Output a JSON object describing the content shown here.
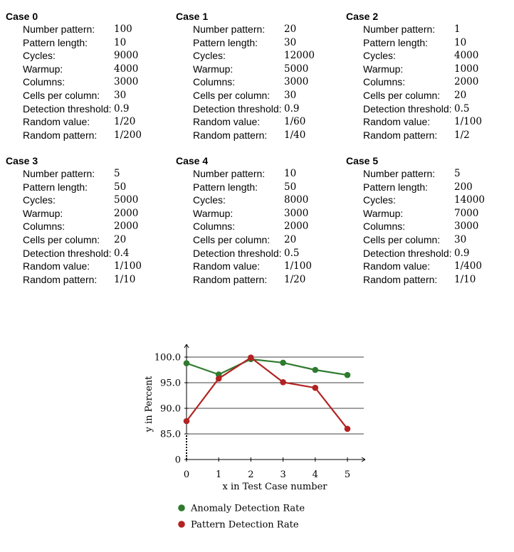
{
  "cases": [
    {
      "title": "Case 0",
      "rows": [
        {
          "label": "Number pattern:",
          "value": "100"
        },
        {
          "label": "Pattern length:",
          "value": "10"
        },
        {
          "label": "Cycles:",
          "value": "9000"
        },
        {
          "label": "Warmup:",
          "value": "4000"
        },
        {
          "label": "Columns:",
          "value": "3000"
        },
        {
          "label": "Cells per column:",
          "value": "30"
        },
        {
          "label": "Detection threshold:",
          "value": "0.9"
        },
        {
          "label": "Random value:",
          "value": "1/20"
        },
        {
          "label": "Random pattern:",
          "value": "1/200"
        }
      ]
    },
    {
      "title": "Case 1",
      "rows": [
        {
          "label": "Number pattern:",
          "value": "20"
        },
        {
          "label": "Pattern length:",
          "value": "30"
        },
        {
          "label": "Cycles:",
          "value": "12000"
        },
        {
          "label": "Warmup:",
          "value": "5000"
        },
        {
          "label": "Columns:",
          "value": "3000"
        },
        {
          "label": "Cells per column:",
          "value": "30"
        },
        {
          "label": "Detection threshold:",
          "value": "0.9"
        },
        {
          "label": "Random value:",
          "value": "1/60"
        },
        {
          "label": "Random pattern:",
          "value": "1/40"
        }
      ]
    },
    {
      "title": "Case 2",
      "rows": [
        {
          "label": "Number pattern:",
          "value": "1"
        },
        {
          "label": "Pattern length:",
          "value": "10"
        },
        {
          "label": "Cycles:",
          "value": "4000"
        },
        {
          "label": "Warmup:",
          "value": "1000"
        },
        {
          "label": "Columns:",
          "value": "2000"
        },
        {
          "label": "Cells per column:",
          "value": "20"
        },
        {
          "label": "Detection threshold:",
          "value": "0.5"
        },
        {
          "label": "Random value:",
          "value": "1/100"
        },
        {
          "label": "Random pattern:",
          "value": "1/2"
        }
      ]
    },
    {
      "title": "Case 3",
      "rows": [
        {
          "label": "Number pattern:",
          "value": "5"
        },
        {
          "label": "Pattern length:",
          "value": "50"
        },
        {
          "label": "Cycles:",
          "value": "5000"
        },
        {
          "label": "Warmup:",
          "value": "2000"
        },
        {
          "label": "Columns:",
          "value": "2000"
        },
        {
          "label": "Cells per column:",
          "value": "20"
        },
        {
          "label": "Detection threshold:",
          "value": "0.4"
        },
        {
          "label": "Random value:",
          "value": "1/100"
        },
        {
          "label": "Random pattern:",
          "value": "1/10"
        }
      ]
    },
    {
      "title": "Case 4",
      "rows": [
        {
          "label": "Number pattern:",
          "value": "10"
        },
        {
          "label": "Pattern length:",
          "value": "50"
        },
        {
          "label": "Cycles:",
          "value": "8000"
        },
        {
          "label": "Warmup:",
          "value": "3000"
        },
        {
          "label": "Columns:",
          "value": "2000"
        },
        {
          "label": "Cells per column:",
          "value": "20"
        },
        {
          "label": "Detection threshold:",
          "value": "0.5"
        },
        {
          "label": "Random value:",
          "value": "1/100"
        },
        {
          "label": "Random pattern:",
          "value": "1/20"
        }
      ]
    },
    {
      "title": "Case 5",
      "rows": [
        {
          "label": "Number pattern:",
          "value": "5"
        },
        {
          "label": "Pattern length:",
          "value": "200"
        },
        {
          "label": "Cycles:",
          "value": "14000"
        },
        {
          "label": "Warmup:",
          "value": "7000"
        },
        {
          "label": "Columns:",
          "value": "3000"
        },
        {
          "label": "Cells per column:",
          "value": "30"
        },
        {
          "label": "Detection threshold:",
          "value": "0.9"
        },
        {
          "label": "Random value:",
          "value": "1/400"
        },
        {
          "label": "Random pattern:",
          "value": "1/10"
        }
      ]
    }
  ],
  "chart_data": {
    "type": "line",
    "title": "",
    "xlabel": "x in Test Case number",
    "ylabel": "y in Percent",
    "x": [
      0,
      1,
      2,
      3,
      4,
      5
    ],
    "x_tick_labels": [
      "0",
      "1",
      "2",
      "3",
      "4",
      "5"
    ],
    "y_tick_labels": [
      "0",
      "85.0",
      "90.0",
      "95.0",
      "100.0"
    ],
    "y_ticks": [
      85,
      90,
      95,
      100
    ],
    "ylim": [
      85,
      100
    ],
    "y_axis_broken": true,
    "grid": "horizontal",
    "legend_position": "bottom-left",
    "series": [
      {
        "name": "Anomaly Detection Rate",
        "color": "#2e7a2e",
        "values": [
          98.8,
          96.6,
          99.6,
          98.9,
          97.5,
          96.5
        ]
      },
      {
        "name": "Pattern Detection Rate",
        "color": "#b22222",
        "values": [
          87.5,
          95.8,
          99.9,
          95.1,
          94.0,
          86.0
        ]
      }
    ]
  }
}
